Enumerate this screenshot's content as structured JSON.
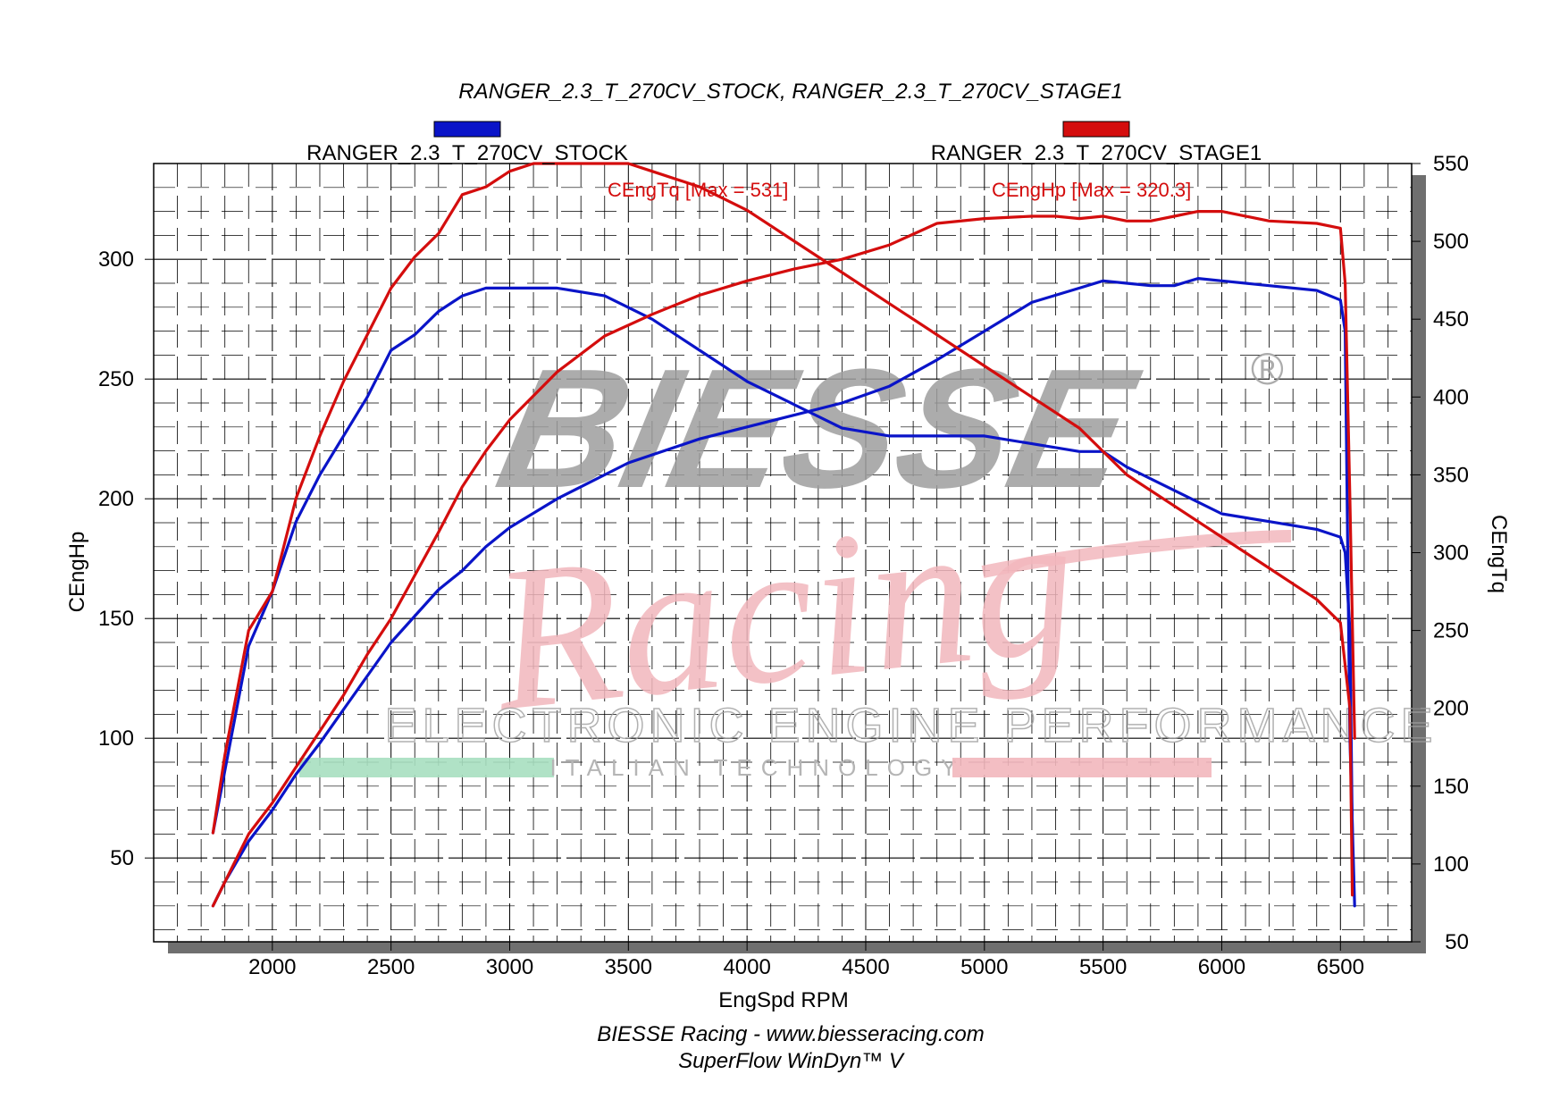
{
  "chart_data": {
    "type": "line",
    "title": "RANGER_2.3_T_270CV_STOCK, RANGER_2.3_T_270CV_STAGE1",
    "xlabel": "EngSpd RPM",
    "ylabel_left": "CEngHp",
    "ylabel_right": "CEngTq",
    "xlim": [
      1500,
      6800
    ],
    "ylim_left": [
      15,
      340
    ],
    "ylim_right": [
      50,
      550
    ],
    "x_ticks": [
      2000,
      2500,
      3000,
      3500,
      4000,
      4500,
      5000,
      5500,
      6000,
      6500
    ],
    "y_ticks_left": [
      50,
      100,
      150,
      200,
      250,
      300
    ],
    "y_ticks_right": [
      50,
      100,
      150,
      200,
      250,
      300,
      350,
      400,
      450,
      500,
      550
    ],
    "grid": true,
    "legend": [
      {
        "name": "RANGER_2.3_T_270CV_STOCK",
        "color": "#0a14c8"
      },
      {
        "name": "RANGER_2.3_T_270CV_STAGE1",
        "color": "#d40d0d"
      }
    ],
    "annotations": [
      "CEngTq [Max = 531]",
      "CEngHp [Max = 320.3]"
    ],
    "series": [
      {
        "name": "RANGER_2.3_T_270CV_STOCK",
        "measure": "CEngHp",
        "axis": "left",
        "color": "#0a14c8",
        "x": [
          1750,
          1800,
          1900,
          2000,
          2100,
          2200,
          2300,
          2400,
          2500,
          2600,
          2700,
          2800,
          2900,
          3000,
          3200,
          3500,
          3800,
          4000,
          4200,
          4400,
          4600,
          4800,
          5000,
          5200,
          5400,
          5500,
          5600,
          5700,
          5800,
          5900,
          6000,
          6200,
          6400,
          6500,
          6520,
          6540,
          6560
        ],
        "y": [
          30,
          40,
          57,
          70,
          85,
          98,
          112,
          126,
          140,
          151,
          162,
          170,
          180,
          188,
          200,
          215,
          225,
          230,
          235,
          240,
          247,
          258,
          270,
          282,
          288,
          291,
          290,
          289,
          289,
          292,
          291,
          289,
          287,
          283,
          270,
          100,
          30
        ]
      },
      {
        "name": "RANGER_2.3_T_270CV_STOCK",
        "measure": "CEngTq",
        "axis": "right",
        "color": "#0a14c8",
        "x": [
          1750,
          1800,
          1850,
          1900,
          2000,
          2100,
          2200,
          2300,
          2400,
          2500,
          2600,
          2700,
          2800,
          2900,
          3000,
          3100,
          3200,
          3400,
          3600,
          3800,
          4000,
          4200,
          4400,
          4600,
          4800,
          5000,
          5200,
          5400,
          5500,
          5600,
          5800,
          6000,
          6200,
          6400,
          6500,
          6520,
          6540,
          6550
        ],
        "y": [
          120,
          160,
          200,
          240,
          275,
          320,
          350,
          375,
          400,
          430,
          440,
          455,
          465,
          470,
          470,
          470,
          470,
          465,
          450,
          430,
          410,
          395,
          380,
          375,
          375,
          375,
          370,
          365,
          365,
          355,
          340,
          325,
          320,
          315,
          310,
          300,
          250,
          120
        ]
      },
      {
        "name": "RANGER_2.3_T_270CV_STAGE1",
        "measure": "CEngHp",
        "axis": "left",
        "color": "#d40d0d",
        "x": [
          1750,
          1800,
          1900,
          2000,
          2100,
          2200,
          2300,
          2400,
          2500,
          2600,
          2700,
          2800,
          2900,
          3000,
          3200,
          3400,
          3600,
          3800,
          4000,
          4200,
          4400,
          4600,
          4800,
          5000,
          5200,
          5300,
          5400,
          5500,
          5600,
          5700,
          5800,
          5900,
          6000,
          6200,
          6400,
          6500,
          6520,
          6540,
          6560
        ],
        "y": [
          30,
          40,
          60,
          73,
          88,
          103,
          118,
          135,
          150,
          168,
          186,
          205,
          220,
          233,
          253,
          268,
          277,
          285,
          291,
          296,
          300,
          306,
          315,
          317,
          318,
          318,
          317,
          318,
          316,
          316,
          318,
          320,
          320,
          316,
          315,
          313,
          290,
          200,
          100
        ]
      },
      {
        "name": "RANGER_2.3_T_270CV_STAGE1",
        "measure": "CEngTq",
        "axis": "right",
        "color": "#d40d0d",
        "x": [
          1750,
          1800,
          1850,
          1900,
          2000,
          2100,
          2200,
          2300,
          2400,
          2500,
          2600,
          2700,
          2800,
          2900,
          3000,
          3100,
          3200,
          3300,
          3400,
          3500,
          3600,
          3800,
          4000,
          4200,
          4400,
          4600,
          4800,
          5000,
          5200,
          5400,
          5600,
          5800,
          6000,
          6200,
          6400,
          6500,
          6540,
          6550
        ],
        "y": [
          120,
          170,
          210,
          250,
          275,
          335,
          375,
          410,
          440,
          470,
          490,
          505,
          530,
          535,
          545,
          550,
          550,
          550,
          550,
          550,
          545,
          535,
          520,
          500,
          480,
          460,
          440,
          420,
          400,
          380,
          350,
          330,
          310,
          290,
          270,
          255,
          200,
          80
        ]
      }
    ]
  },
  "footer": {
    "line1": "BIESSE Racing - www.biesseracing.com",
    "line2": "SuperFlow WinDyn™ V"
  },
  "watermark": {
    "brand": "BIESSE",
    "script": "Racing",
    "tagline": "ELECTRONIC ENGINE PERFORMANCE",
    "sub": "ITALIAN TECHNOLOGY",
    "colors": {
      "brand": "#9e9e9e",
      "script": "#f2b7bd",
      "green": "#a7dfc0"
    }
  }
}
